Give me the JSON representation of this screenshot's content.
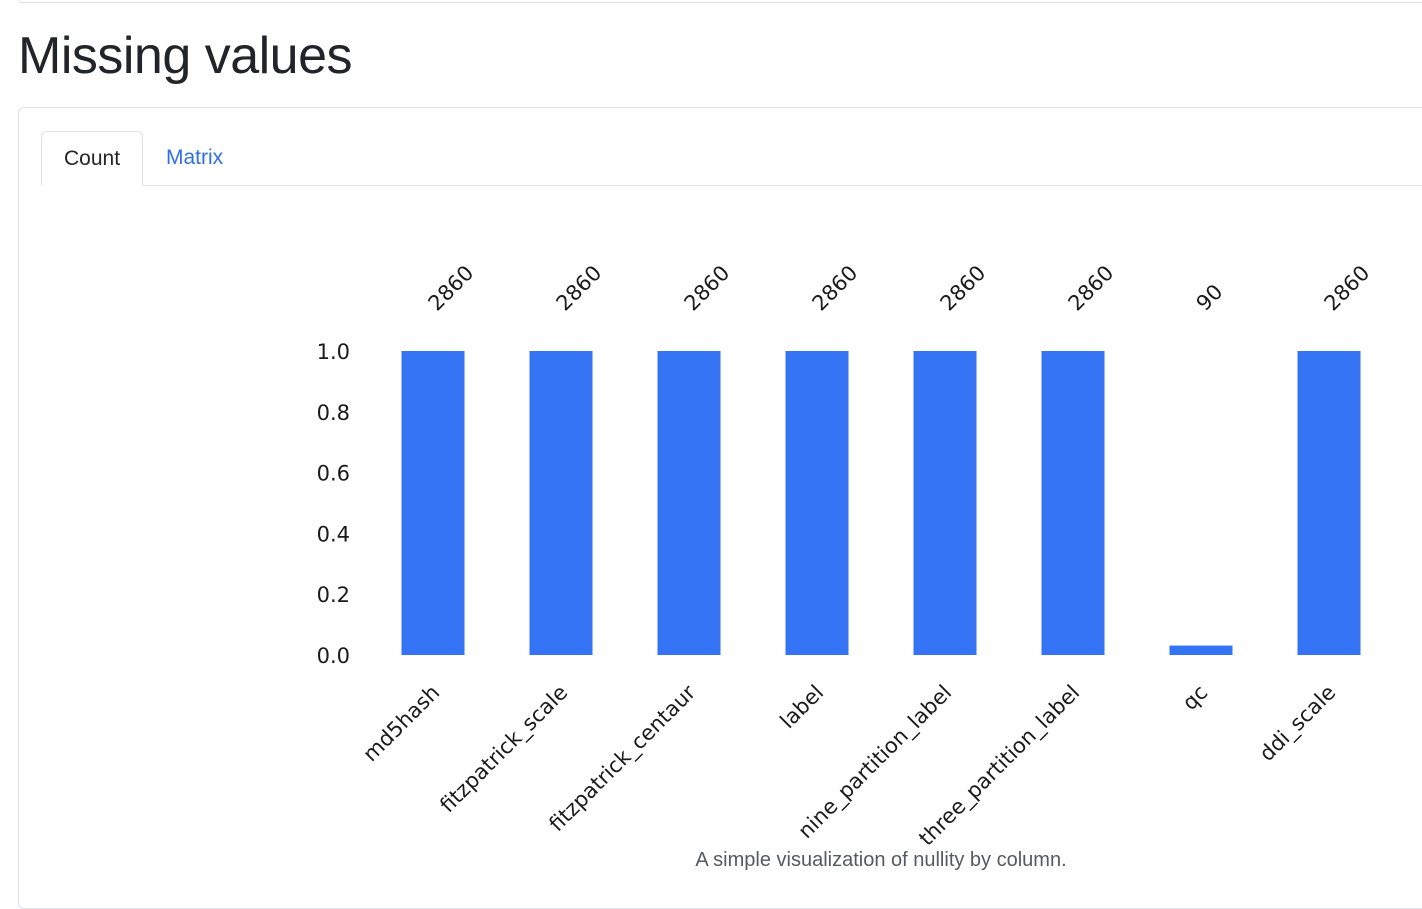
{
  "page": {
    "title": "Missing values"
  },
  "tabs": [
    {
      "label": "Count",
      "active": true
    },
    {
      "label": "Matrix",
      "active": false
    }
  ],
  "chart_data": {
    "type": "bar",
    "categories": [
      "md5hash",
      "fitzpatrick_scale",
      "fitzpatrick_centaur",
      "label",
      "nine_partition_label",
      "three_partition_label",
      "qc",
      "ddi_scale"
    ],
    "values": [
      1.0,
      1.0,
      1.0,
      1.0,
      1.0,
      1.0,
      0.031,
      1.0
    ],
    "counts": [
      "2860",
      "2860",
      "2860",
      "2860",
      "2860",
      "2860",
      "90",
      "2860"
    ],
    "yticks": [
      "0.0",
      "0.2",
      "0.4",
      "0.6",
      "0.8",
      "1.0"
    ],
    "ylim": [
      0,
      1
    ],
    "bar_color": "#3573f5",
    "grid": false,
    "xlabel": "",
    "ylabel": ""
  },
  "caption": "A simple visualization of nullity by column.",
  "colors": {
    "accent": "#2f6fe4",
    "bar": "#3573f5",
    "border": "#dee2e6"
  }
}
